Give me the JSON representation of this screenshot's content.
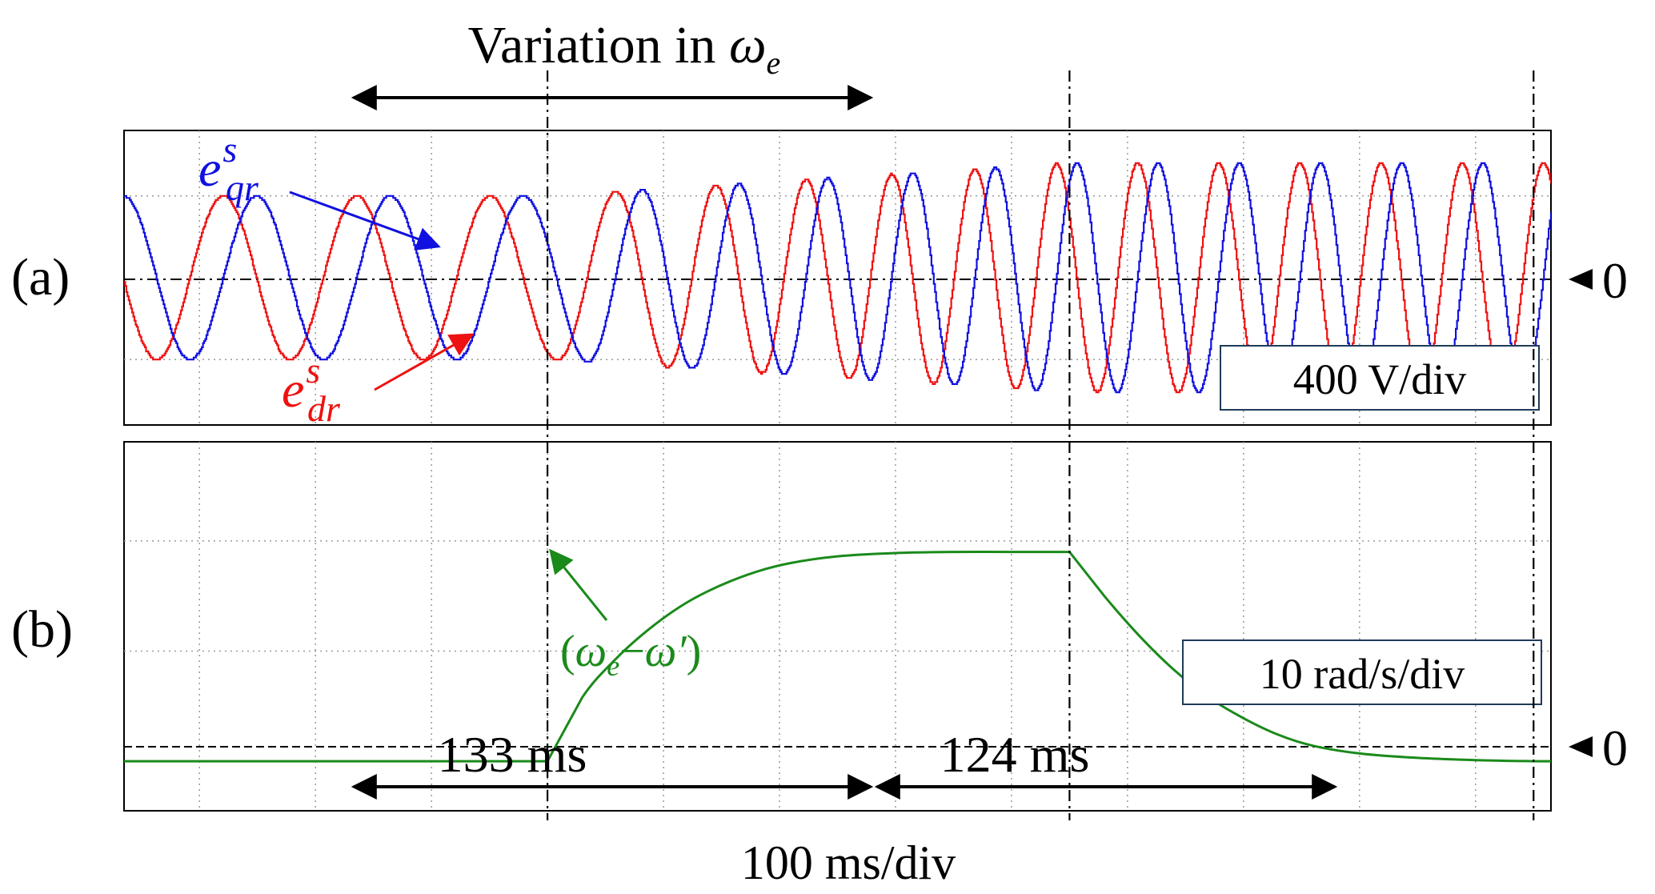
{
  "header": {
    "variation_text": "Variation in ",
    "variation_symbol": "ω",
    "variation_sub": "e"
  },
  "panel_a": {
    "label": "(a)",
    "scale_text": "400 V/div",
    "zero_label": "0",
    "series_labels": {
      "eqr": {
        "base": "e",
        "sup": "s",
        "sub": "qr",
        "color": "#1010e0"
      },
      "edr": {
        "base": "e",
        "sup": "s",
        "sub": "dr",
        "color": "#ee1111"
      }
    }
  },
  "panel_b": {
    "label": "(b)",
    "scale_text": "10 rad/s/div",
    "zero_label": "0",
    "curve_label": {
      "open": "(",
      "w": "ω",
      "sub": "e",
      "minus": "−",
      "wprime": "ω′",
      "close": ")",
      "color": "#1a8a1a"
    },
    "span1_text": "133 ms",
    "span2_text": "124 ms"
  },
  "time_scale_text": "100 ms/div",
  "chart_data": [
    {
      "type": "line",
      "panel": "a",
      "units": "V",
      "y_per_div": 400,
      "x_per_div_ms": 100,
      "x_range_ms": [
        -365,
        865
      ],
      "y_range_div": [
        -1.8,
        1.8
      ],
      "events_ms": [
        0,
        450,
        850
      ],
      "zero_line": true,
      "grid": true,
      "series": [
        {
          "name": "e_qr^s",
          "color": "#1010e0",
          "phase_offset": 0,
          "frequency_hz_start": 8.7,
          "frequency_hz_end": 14.3,
          "amplitude_div_start": 1.0,
          "amplitude_div_end": 1.4
        },
        {
          "name": "e_dr^s",
          "color": "#ee1111",
          "phase_offset": 90,
          "frequency_hz_start": 8.7,
          "frequency_hz_end": 14.3,
          "amplitude_div_start": 1.0,
          "amplitude_div_end": 1.4
        }
      ]
    },
    {
      "type": "line",
      "panel": "b",
      "units": "rad/s",
      "y_per_div": 10,
      "x_per_div_ms": 100,
      "x_range_ms": [
        -365,
        865
      ],
      "y_range_div": [
        -0.45,
        2.9
      ],
      "events_ms": [
        0,
        450,
        850
      ],
      "zero_line": true,
      "grid": true,
      "series": [
        {
          "name": "ω_e − ω′",
          "color": "#1a8a1a",
          "points": [
            [
              -365,
              0
            ],
            [
              0,
              0
            ],
            [
              30,
              5.8
            ],
            [
              60,
              9.4
            ],
            [
              90,
              12.2
            ],
            [
              120,
              14.4
            ],
            [
              150,
              16.0
            ],
            [
              180,
              17.2
            ],
            [
              210,
              18.0
            ],
            [
              250,
              18.6
            ],
            [
              300,
              18.9
            ],
            [
              350,
              19.0
            ],
            [
              400,
              19.0
            ],
            [
              450,
              19.0
            ],
            [
              480,
              15.0
            ],
            [
              510,
              11.4
            ],
            [
              540,
              8.3
            ],
            [
              570,
              5.8
            ],
            [
              600,
              3.9
            ],
            [
              630,
              2.4
            ],
            [
              660,
              1.4
            ],
            [
              700,
              0.7
            ],
            [
              750,
              0.3
            ],
            [
              800,
              0.1
            ],
            [
              850,
              0
            ],
            [
              865,
              0
            ]
          ]
        }
      ]
    }
  ]
}
